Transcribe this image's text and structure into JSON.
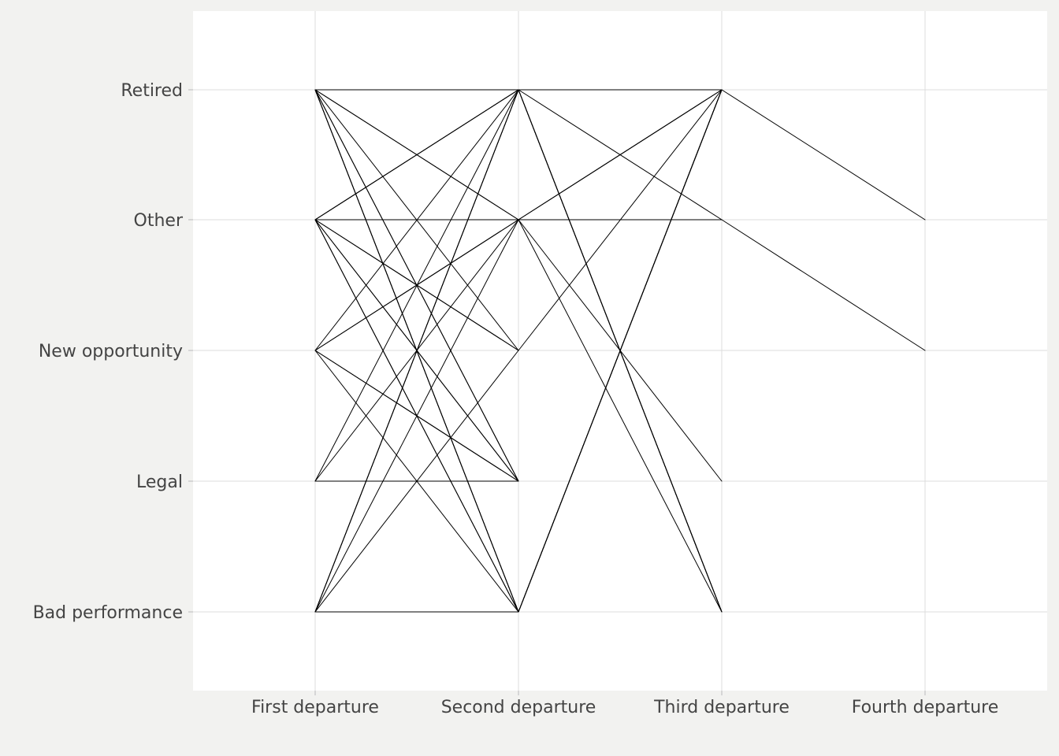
{
  "chart_data": {
    "type": "line",
    "title": "",
    "xlabel": "",
    "ylabel": "",
    "x_categories": [
      "First departure",
      "Second departure",
      "Third departure",
      "Fourth departure"
    ],
    "y_categories": [
      "Bad performance",
      "Legal",
      "New opportunity",
      "Other",
      "Retired"
    ],
    "grid": true,
    "legend": "none",
    "line_color": "#000000",
    "series": [
      {
        "values": [
          "Retired",
          "Retired",
          "Retired",
          "Other"
        ]
      },
      {
        "values": [
          "Retired",
          "Other",
          "Other",
          "New opportunity"
        ]
      },
      {
        "values": [
          "Retired",
          "Bad performance",
          "Retired"
        ]
      },
      {
        "values": [
          "Retired",
          "Bad performance",
          "Retired"
        ]
      },
      {
        "values": [
          "Retired",
          "Bad performance",
          "Retired"
        ]
      },
      {
        "values": [
          "Retired",
          "Legal"
        ]
      },
      {
        "values": [
          "Retired",
          "Legal"
        ]
      },
      {
        "values": [
          "Retired",
          "New opportunity",
          "Retired"
        ]
      },
      {
        "values": [
          "Retired",
          "Other"
        ]
      },
      {
        "values": [
          "Other",
          "Retired",
          "Bad performance"
        ]
      },
      {
        "values": [
          "Other",
          "Retired",
          "Bad performance"
        ]
      },
      {
        "values": [
          "Other",
          "Retired",
          "Other"
        ]
      },
      {
        "values": [
          "Other",
          "Other",
          "Legal"
        ]
      },
      {
        "values": [
          "Other",
          "Legal"
        ]
      },
      {
        "values": [
          "Other",
          "Legal"
        ]
      },
      {
        "values": [
          "Other",
          "New opportunity"
        ]
      },
      {
        "values": [
          "Other",
          "New opportunity"
        ]
      },
      {
        "values": [
          "Other",
          "Bad performance"
        ]
      },
      {
        "values": [
          "Other",
          "Bad performance"
        ]
      },
      {
        "values": [
          "New opportunity",
          "Retired",
          "Bad performance"
        ]
      },
      {
        "values": [
          "New opportunity",
          "Other",
          "Retired"
        ]
      },
      {
        "values": [
          "New opportunity",
          "Other",
          "Bad performance"
        ]
      },
      {
        "values": [
          "New opportunity",
          "Legal"
        ]
      },
      {
        "values": [
          "New opportunity",
          "Legal"
        ]
      },
      {
        "values": [
          "New opportunity",
          "Bad performance"
        ]
      },
      {
        "values": [
          "Legal",
          "Retired"
        ]
      },
      {
        "values": [
          "Legal",
          "Other"
        ]
      },
      {
        "values": [
          "Legal",
          "Legal"
        ]
      },
      {
        "values": [
          "Bad performance",
          "Retired",
          "Bad performance"
        ]
      },
      {
        "values": [
          "Bad performance",
          "Retired",
          "Retired"
        ]
      },
      {
        "values": [
          "Bad performance",
          "Retired",
          "Retired"
        ]
      },
      {
        "values": [
          "Bad performance",
          "Other",
          "Retired"
        ]
      },
      {
        "values": [
          "Bad performance",
          "New opportunity"
        ]
      },
      {
        "values": [
          "Bad performance",
          "Bad performance",
          "Retired"
        ]
      },
      {
        "values": [
          "Bad performance",
          "Bad performance",
          "Retired"
        ]
      }
    ]
  }
}
